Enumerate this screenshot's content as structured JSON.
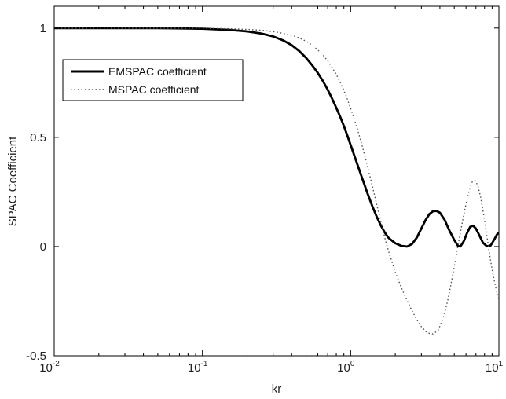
{
  "chart_data": {
    "type": "line",
    "xscale": "log",
    "xlim": [
      0.01,
      10
    ],
    "ylim": [
      -0.5,
      1.1
    ],
    "xlabel": "kr",
    "ylabel": "SPAC Coefficient",
    "xticks": [
      {
        "value": 0.01,
        "base": "10",
        "exp": "-2"
      },
      {
        "value": 0.1,
        "base": "10",
        "exp": "-1"
      },
      {
        "value": 1,
        "base": "10",
        "exp": "0"
      },
      {
        "value": 10,
        "base": "10",
        "exp": "1"
      }
    ],
    "yticks": [
      {
        "value": -0.5,
        "label": "-0.5"
      },
      {
        "value": 0,
        "label": "0"
      },
      {
        "value": 0.5,
        "label": "0.5"
      },
      {
        "value": 1,
        "label": "1"
      }
    ],
    "legend": {
      "location": "top-left"
    },
    "series": [
      {
        "name": "EMSPAC coefficient",
        "style": "solid",
        "color": "#000000",
        "points": [
          [
            0.01,
            1.0
          ],
          [
            0.05,
            1.0
          ],
          [
            0.08,
            0.998
          ],
          [
            0.1,
            0.997
          ],
          [
            0.15,
            0.992
          ],
          [
            0.2,
            0.985
          ],
          [
            0.25,
            0.975
          ],
          [
            0.3,
            0.962
          ],
          [
            0.35,
            0.944
          ],
          [
            0.4,
            0.922
          ],
          [
            0.45,
            0.895
          ],
          [
            0.5,
            0.864
          ],
          [
            0.55,
            0.83
          ],
          [
            0.6,
            0.795
          ],
          [
            0.65,
            0.758
          ],
          [
            0.7,
            0.718
          ],
          [
            0.75,
            0.677
          ],
          [
            0.8,
            0.635
          ],
          [
            0.85,
            0.594
          ],
          [
            0.9,
            0.552
          ],
          [
            0.95,
            0.508
          ],
          [
            1.0,
            0.465
          ],
          [
            1.1,
            0.384
          ],
          [
            1.2,
            0.31
          ],
          [
            1.3,
            0.243
          ],
          [
            1.4,
            0.185
          ],
          [
            1.5,
            0.136
          ],
          [
            1.6,
            0.096
          ],
          [
            1.7,
            0.064
          ],
          [
            1.8,
            0.04
          ],
          [
            2.0,
            0.015
          ],
          [
            2.2,
            0.003
          ],
          [
            2.4,
            0.0
          ],
          [
            2.6,
            0.012
          ],
          [
            2.8,
            0.042
          ],
          [
            3.0,
            0.083
          ],
          [
            3.2,
            0.121
          ],
          [
            3.4,
            0.149
          ],
          [
            3.6,
            0.162
          ],
          [
            3.8,
            0.163
          ],
          [
            4.0,
            0.155
          ],
          [
            4.3,
            0.123
          ],
          [
            4.6,
            0.078
          ],
          [
            5.0,
            0.03
          ],
          [
            5.3,
            0.003
          ],
          [
            5.5,
            0.0
          ],
          [
            5.8,
            0.025
          ],
          [
            6.1,
            0.062
          ],
          [
            6.4,
            0.09
          ],
          [
            6.7,
            0.096
          ],
          [
            7.0,
            0.082
          ],
          [
            7.4,
            0.05
          ],
          [
            7.8,
            0.018
          ],
          [
            8.3,
            0.001
          ],
          [
            8.8,
            0.005
          ],
          [
            9.3,
            0.032
          ],
          [
            9.7,
            0.055
          ],
          [
            10.0,
            0.065
          ]
        ]
      },
      {
        "name": "MSPAC coefficient",
        "style": "dotted",
        "color": "#555555",
        "points": [
          [
            0.01,
            1.0
          ],
          [
            0.05,
            1.0
          ],
          [
            0.1,
            0.999
          ],
          [
            0.15,
            0.997
          ],
          [
            0.2,
            0.994
          ],
          [
            0.25,
            0.99
          ],
          [
            0.3,
            0.984
          ],
          [
            0.35,
            0.976
          ],
          [
            0.4,
            0.967
          ],
          [
            0.45,
            0.955
          ],
          [
            0.5,
            0.94
          ],
          [
            0.55,
            0.922
          ],
          [
            0.6,
            0.9
          ],
          [
            0.65,
            0.877
          ],
          [
            0.7,
            0.85
          ],
          [
            0.75,
            0.82
          ],
          [
            0.8,
            0.788
          ],
          [
            0.85,
            0.752
          ],
          [
            0.9,
            0.715
          ],
          [
            0.95,
            0.675
          ],
          [
            1.0,
            0.633
          ],
          [
            1.1,
            0.548
          ],
          [
            1.2,
            0.458
          ],
          [
            1.3,
            0.367
          ],
          [
            1.4,
            0.278
          ],
          [
            1.5,
            0.192
          ],
          [
            1.6,
            0.113
          ],
          [
            1.7,
            0.04
          ],
          [
            1.8,
            -0.02
          ],
          [
            2.0,
            -0.117
          ],
          [
            2.2,
            -0.189
          ],
          [
            2.4,
            -0.246
          ],
          [
            2.6,
            -0.295
          ],
          [
            2.8,
            -0.335
          ],
          [
            3.0,
            -0.367
          ],
          [
            3.3,
            -0.396
          ],
          [
            3.6,
            -0.4
          ],
          [
            3.9,
            -0.382
          ],
          [
            4.2,
            -0.33
          ],
          [
            4.5,
            -0.252
          ],
          [
            4.8,
            -0.157
          ],
          [
            5.1,
            -0.06
          ],
          [
            5.4,
            0.035
          ],
          [
            5.7,
            0.12
          ],
          [
            6.0,
            0.196
          ],
          [
            6.3,
            0.257
          ],
          [
            6.6,
            0.295
          ],
          [
            6.9,
            0.303
          ],
          [
            7.2,
            0.28
          ],
          [
            7.5,
            0.232
          ],
          [
            7.8,
            0.168
          ],
          [
            8.1,
            0.097
          ],
          [
            8.4,
            0.024
          ],
          [
            8.7,
            -0.045
          ],
          [
            9.0,
            -0.105
          ],
          [
            9.4,
            -0.171
          ],
          [
            9.7,
            -0.21
          ],
          [
            10.0,
            -0.245
          ]
        ]
      }
    ]
  }
}
